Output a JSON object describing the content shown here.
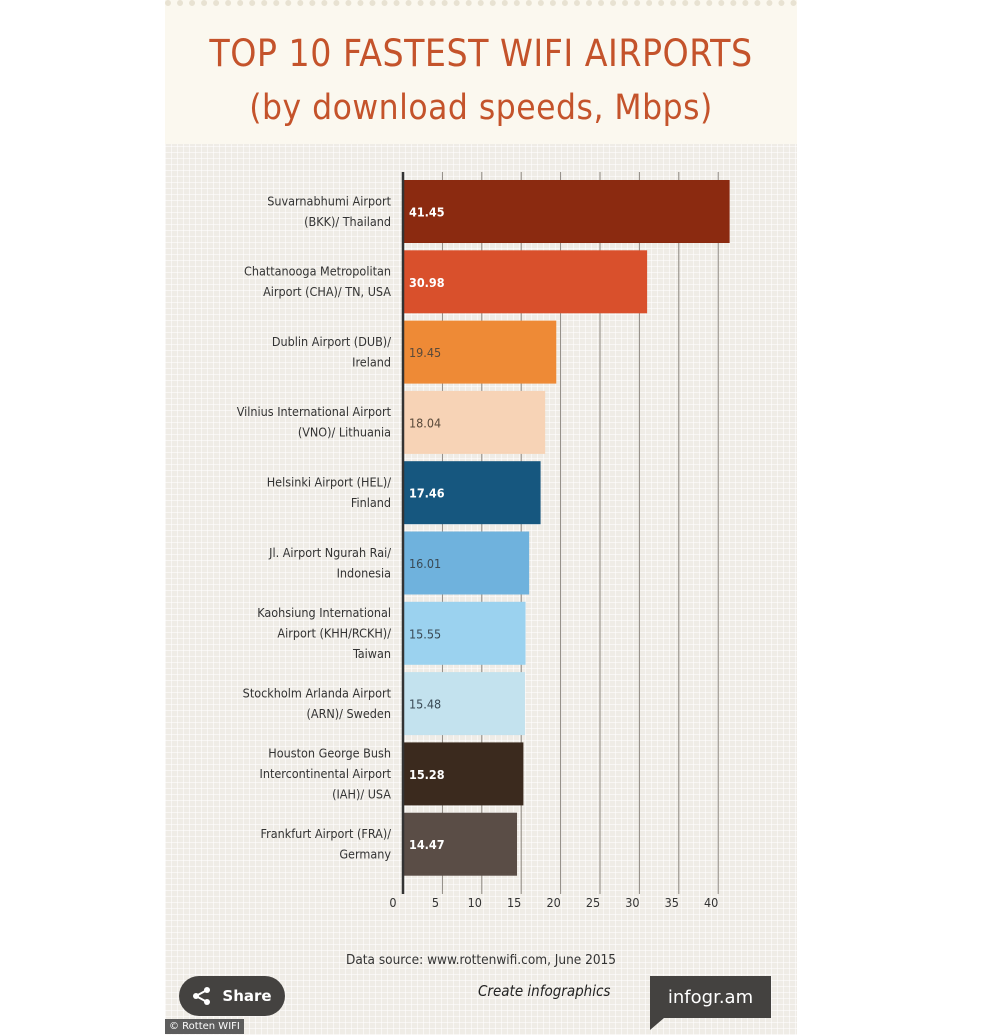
{
  "header": {
    "title_line1": "TOP 10 FASTEST WIFI AIRPORTS",
    "title_line2": "(by download speeds, Mbps)"
  },
  "chart_data": {
    "type": "bar",
    "orientation": "horizontal",
    "categories": [
      "Suvarnabhumi Airport (BKK)/ Thailand",
      "Chattanooga Metropolitan Airport (CHA)/ TN, USA",
      "Dublin Airport (DUB)/ Ireland",
      "Vilnius International Airport (VNO)/ Lithuania",
      "Helsinki Airport (HEL)/ Finland",
      "Jl. Airport Ngurah Rai/ Indonesia",
      "Kaohsiung International Airport (KHH/RCKH)/ Taiwan",
      "Stockholm Arlanda Airport (ARN)/ Sweden",
      "Houston George Bush Intercontinental Airport (IAH)/ USA",
      "Frankfurt Airport (FRA)/ Germany"
    ],
    "category_lines": [
      [
        "Suvarnabhumi Airport",
        "(BKK)/ Thailand"
      ],
      [
        "Chattanooga Metropolitan",
        "Airport (CHA)/ TN, USA"
      ],
      [
        "Dublin Airport (DUB)/",
        "Ireland"
      ],
      [
        "Vilnius International Airport",
        "(VNO)/ Lithuania"
      ],
      [
        "Helsinki Airport (HEL)/",
        "Finland"
      ],
      [
        "Jl. Airport Ngurah Rai/",
        "Indonesia"
      ],
      [
        "Kaohsiung International",
        "Airport (KHH/RCKH)/",
        "Taiwan"
      ],
      [
        "Stockholm Arlanda Airport",
        "(ARN)/ Sweden"
      ],
      [
        "Houston George Bush",
        "Intercontinental Airport",
        "(IAH)/ USA"
      ],
      [
        "Frankfurt Airport (FRA)/",
        "Germany"
      ]
    ],
    "values": [
      41.45,
      30.98,
      19.45,
      18.04,
      17.46,
      16.01,
      15.55,
      15.48,
      15.28,
      14.47
    ],
    "value_labels": [
      "41.45",
      "30.98",
      "19.45",
      "18.04",
      "17.46",
      "16.01",
      "15.55",
      "15.48",
      "15.28",
      "14.47"
    ],
    "bar_colors": [
      "#8b2a10",
      "#d9502c",
      "#ee8a36",
      "#f7d3b6",
      "#16577f",
      "#6fb2dd",
      "#9bd2ef",
      "#c3e2ee",
      "#3b2a1e",
      "#5a4d46"
    ],
    "label_colors": [
      "#ffffff",
      "#ffffff",
      "#5a4a3a",
      "#5a4a3a",
      "#ffffff",
      "#3a4a55",
      "#3a4a55",
      "#3a4a55",
      "#ffffff",
      "#ffffff"
    ],
    "xlim": [
      0,
      42
    ],
    "ticks": [
      0,
      5,
      10,
      15,
      20,
      25,
      30,
      35,
      40
    ],
    "tick_labels": [
      "0",
      "5",
      "10",
      "15",
      "20",
      "25",
      "30",
      "35",
      "40"
    ],
    "grid": true
  },
  "footer": {
    "source": "Data source: www.rottenwifi.com, June 2015",
    "share_label": "Share",
    "create_label": "Create infographics",
    "brand": "infogr.am",
    "credit": "© Rotten WIFI"
  }
}
